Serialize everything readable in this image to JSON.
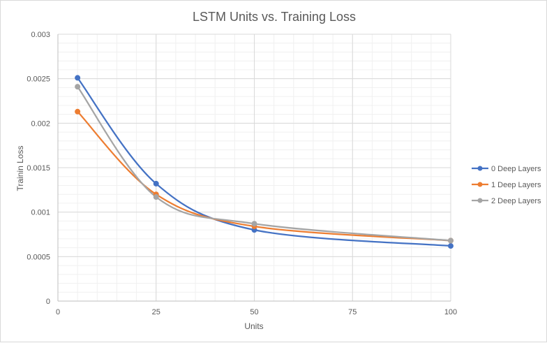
{
  "chart_data": {
    "type": "line",
    "title": "LSTM Units vs. Training Loss",
    "xlabel": "Units",
    "ylabel": "Trainin Loss",
    "xlim": [
      0,
      100
    ],
    "ylim": [
      0,
      0.003
    ],
    "x_ticks": [
      0,
      25,
      50,
      75,
      100
    ],
    "y_ticks": [
      0,
      0.0005,
      0.001,
      0.0015,
      0.002,
      0.0025,
      0.003
    ],
    "x_tick_labels": [
      "0",
      "25",
      "50",
      "75",
      "100"
    ],
    "y_tick_labels": [
      "0",
      "0.0005",
      "0.001",
      "0.0015",
      "0.002",
      "0.0025",
      "0.003"
    ],
    "grid": "major and minor",
    "smooth": true,
    "legend_position": "right",
    "x": [
      5,
      25,
      50,
      100
    ],
    "series": [
      {
        "name": "0 Deep Layers",
        "color": "#4472c4",
        "values": [
          0.00251,
          0.00132,
          0.0008,
          0.00062
        ]
      },
      {
        "name": "1 Deep Layers",
        "color": "#ed7d31",
        "values": [
          0.00213,
          0.0012,
          0.00084,
          0.00068
        ]
      },
      {
        "name": "2 Deep Layers",
        "color": "#a5a5a5",
        "values": [
          0.00241,
          0.00117,
          0.00087,
          0.00068
        ]
      }
    ]
  }
}
